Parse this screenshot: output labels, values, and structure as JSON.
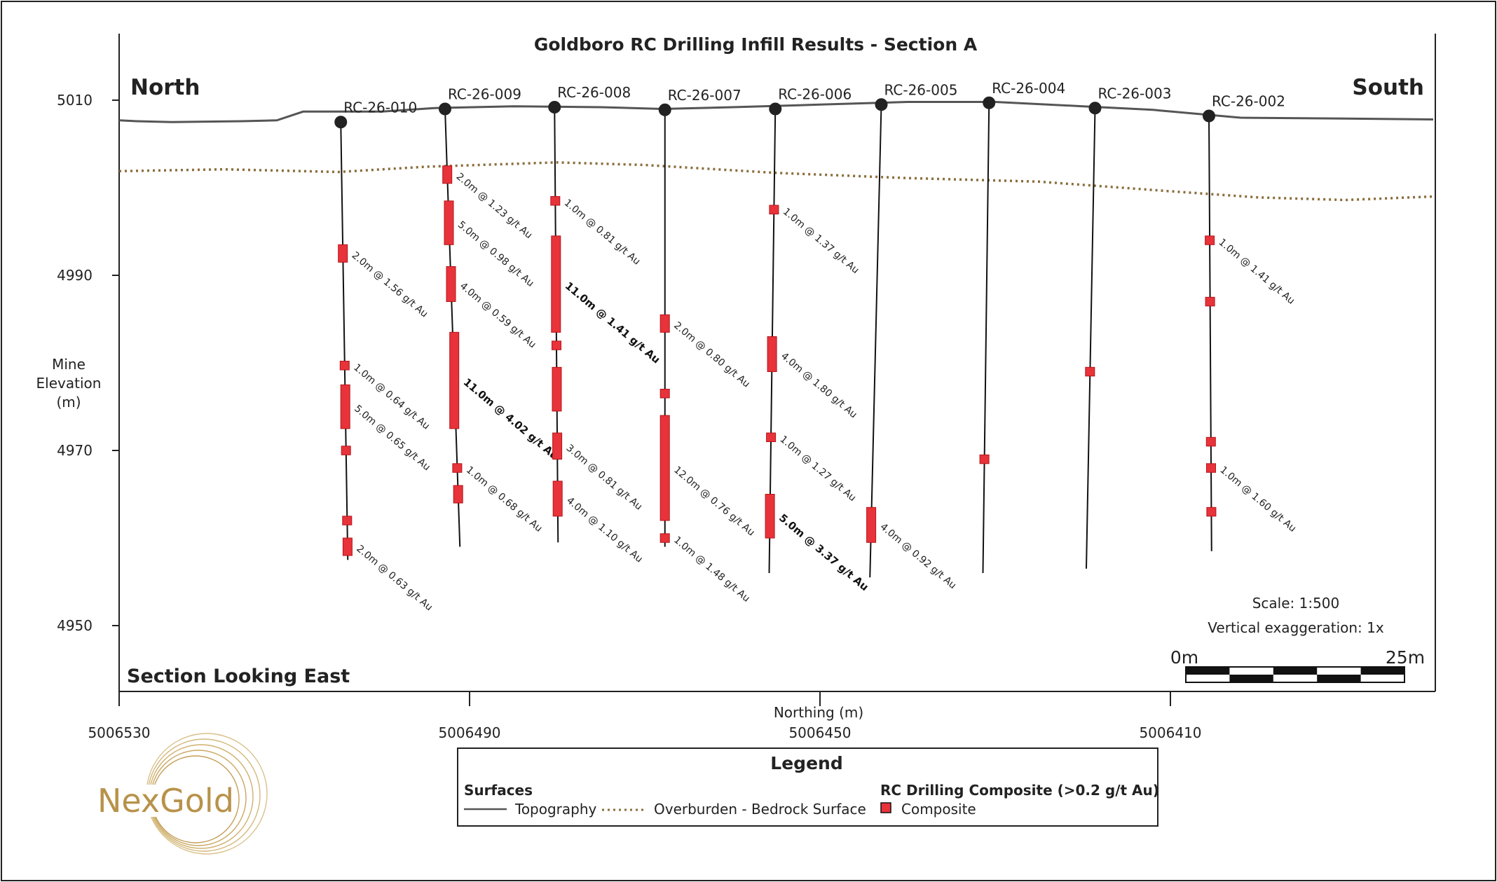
{
  "title": "Goldboro RC Drilling Infill Results - Section A",
  "north_label": "North",
  "south_label": "South",
  "section_label": "Section Looking East",
  "y_axis": {
    "label_lines": [
      "Mine",
      "Elevation",
      "(m)"
    ],
    "ticks": [
      "5010",
      "4990",
      "4970",
      "4950"
    ]
  },
  "x_axis": {
    "label": "Northing (m)",
    "ticks": [
      "5006530",
      "5006490",
      "5006450",
      "5006410"
    ]
  },
  "scale": {
    "text": "Scale: 1:500",
    "exaggeration": "Vertical exaggeration: 1x",
    "start": "0m",
    "end": "25m"
  },
  "legend": {
    "title": "Legend",
    "surfaces_title": "Surfaces",
    "topography": "Topography",
    "overburden": "Overburden - Bedrock Surface",
    "composite_title": "RC Drilling Composite (>0.2 g/t Au)",
    "composite": "Composite"
  },
  "logo": {
    "text": "NexGold"
  },
  "colors": {
    "composite": "#e8333a",
    "topography": "#555555",
    "overburden": "#8a6d3b",
    "collar": "#222222"
  },
  "holes": [
    {
      "name": "RC-26-010",
      "collar_northing": 5006504.7,
      "collar_elev": 5007.5,
      "toe_northing": 5006503.9,
      "toe_elev": 4957.5,
      "composites": [
        [
          4993.5,
          4991.5
        ],
        [
          4980.2,
          4979.2
        ],
        [
          4977.5,
          4972.5
        ],
        [
          4970.5,
          4969.5
        ],
        [
          4962.5,
          4961.5
        ],
        [
          4960.0,
          4958.0
        ]
      ],
      "labels": [
        {
          "text": "2.0m @ 1.56 g/t Au",
          "elev": 4992.5
        },
        {
          "text": "1.0m @ 0.64 g/t Au",
          "elev": 4979.7
        },
        {
          "text": "5.0m @ 0.65 g/t Au",
          "elev": 4975.0
        },
        {
          "text": "2.0m @ 0.63 g/t Au",
          "elev": 4959.0
        }
      ]
    },
    {
      "name": "RC-26-009",
      "collar_northing": 5006492.8,
      "collar_elev": 5009.0,
      "toe_northing": 5006491.1,
      "toe_elev": 4959.0,
      "composites": [
        [
          5002.5,
          5000.5
        ],
        [
          4998.5,
          4993.5
        ],
        [
          4991.0,
          4987.0
        ],
        [
          4983.5,
          4972.5
        ],
        [
          4968.5,
          4967.5
        ],
        [
          4966.0,
          4964.0
        ]
      ],
      "labels": [
        {
          "text": "2.0m @ 1.23 g/t Au",
          "elev": 5001.5
        },
        {
          "text": "5.0m @ 0.98 g/t Au",
          "elev": 4996.0
        },
        {
          "text": "4.0m @ 0.59 g/t Au",
          "elev": 4989.0
        },
        {
          "text": "11.0m @ 4.02 g/t Au",
          "elev": 4978.0,
          "bold": true
        },
        {
          "text": "1.0m @ 0.68 g/t Au",
          "elev": 4968.0
        }
      ]
    },
    {
      "name": "RC-26-008",
      "collar_northing": 5006480.3,
      "collar_elev": 5009.2,
      "toe_northing": 5006479.9,
      "toe_elev": 4959.5,
      "composites": [
        [
          4999.0,
          4998.0
        ],
        [
          4994.5,
          4983.5
        ],
        [
          4982.5,
          4981.5
        ],
        [
          4979.5,
          4974.5
        ],
        [
          4972.0,
          4969.0
        ],
        [
          4966.5,
          4962.5
        ]
      ],
      "labels": [
        {
          "text": "1.0m @ 0.81 g/t Au",
          "elev": 4998.5
        },
        {
          "text": "11.0m @ 1.41 g/t Au",
          "elev": 4989.0,
          "bold": true
        },
        {
          "text": "3.0m @ 0.81 g/t Au",
          "elev": 4970.5
        },
        {
          "text": "4.0m @ 1.10 g/t Au",
          "elev": 4964.5
        }
      ]
    },
    {
      "name": "RC-26-007",
      "collar_northing": 5006467.7,
      "collar_elev": 5008.9,
      "toe_northing": 5006467.7,
      "toe_elev": 4959.0,
      "composites": [
        [
          4985.5,
          4983.5
        ],
        [
          4977.0,
          4976.0
        ],
        [
          4974.0,
          4962.0
        ],
        [
          4960.5,
          4959.5
        ]
      ],
      "labels": [
        {
          "text": "2.0m @ 0.80 g/t Au",
          "elev": 4984.5
        },
        {
          "text": "12.0m @ 0.76 g/t Au",
          "elev": 4968.0
        },
        {
          "text": "1.0m @ 1.48 g/t Au",
          "elev": 4960.0
        }
      ]
    },
    {
      "name": "RC-26-006",
      "collar_northing": 5006455.1,
      "collar_elev": 5009.0,
      "toe_northing": 5006455.8,
      "toe_elev": 4956.0,
      "composites": [
        [
          4998.0,
          4997.0
        ],
        [
          4983.0,
          4979.0
        ],
        [
          4972.0,
          4971.0
        ],
        [
          4965.0,
          4960.0
        ]
      ],
      "labels": [
        {
          "text": "1.0m @ 1.37 g/t Au",
          "elev": 4997.5
        },
        {
          "text": "4.0m @ 1.80 g/t Au",
          "elev": 4981.0
        },
        {
          "text": "1.0m @ 1.27 g/t Au",
          "elev": 4971.5
        },
        {
          "text": "5.0m @ 3.37 g/t Au",
          "elev": 4962.5,
          "bold": true
        }
      ]
    },
    {
      "name": "RC-26-005",
      "collar_northing": 5006443.0,
      "collar_elev": 5009.5,
      "toe_northing": 5006444.3,
      "toe_elev": 4955.5,
      "composites": [
        [
          4963.5,
          4959.5
        ]
      ],
      "labels": [
        {
          "text": "4.0m @ 0.92 g/t Au",
          "elev": 4961.5
        }
      ]
    },
    {
      "name": "RC-26-004",
      "collar_northing": 5006430.7,
      "collar_elev": 5009.7,
      "toe_northing": 5006431.4,
      "toe_elev": 4956.0,
      "composites": [
        [
          4969.5,
          4968.5
        ]
      ],
      "labels": []
    },
    {
      "name": "RC-26-003",
      "collar_northing": 5006418.6,
      "collar_elev": 5009.1,
      "toe_northing": 5006419.6,
      "toe_elev": 4956.5,
      "composites": [
        [
          4979.5,
          4978.5
        ]
      ],
      "labels": []
    },
    {
      "name": "RC-26-002",
      "collar_northing": 5006405.6,
      "collar_elev": 5008.2,
      "toe_northing": 5006405.3,
      "toe_elev": 4958.5,
      "composites": [
        [
          4994.5,
          4993.5
        ],
        [
          4987.5,
          4986.5
        ],
        [
          4971.5,
          4970.5
        ],
        [
          4968.5,
          4967.5
        ],
        [
          4963.5,
          4962.5
        ]
      ],
      "labels": [
        {
          "text": "1.0m @ 1.41 g/t Au",
          "elev": 4994.0
        },
        {
          "text": "1.0m @ 1.60 g/t Au",
          "elev": 4968.0
        }
      ]
    }
  ],
  "topography": [
    [
      5006530,
      5007.7
    ],
    [
      5006528,
      5007.6
    ],
    [
      5006524,
      5007.5
    ],
    [
      5006516,
      5007.6
    ],
    [
      5006512,
      5007.7
    ],
    [
      5006509,
      5008.7
    ],
    [
      5006500,
      5008.7
    ],
    [
      5006494,
      5009.1
    ],
    [
      5006485,
      5009.3
    ],
    [
      5006475,
      5009.2
    ],
    [
      5006468,
      5009.0
    ],
    [
      5006460,
      5009.2
    ],
    [
      5006450,
      5009.5
    ],
    [
      5006440,
      5009.8
    ],
    [
      5006430,
      5009.8
    ],
    [
      5006420,
      5009.3
    ],
    [
      5006412,
      5008.9
    ],
    [
      5006402,
      5008.0
    ],
    [
      5006390,
      5007.9
    ],
    [
      5006380,
      5007.8
    ]
  ],
  "overburden": [
    [
      5006530,
      5001.9
    ],
    [
      5006518,
      5002.1
    ],
    [
      5006505,
      5001.8
    ],
    [
      5006495,
      5002.4
    ],
    [
      5006480,
      5002.9
    ],
    [
      5006470,
      5002.6
    ],
    [
      5006455,
      5001.7
    ],
    [
      5006440,
      5001.1
    ],
    [
      5006425,
      5000.7
    ],
    [
      5006410,
      4999.6
    ],
    [
      5006400,
      4998.9
    ],
    [
      5006390,
      4998.6
    ],
    [
      5006380,
      4999.0
    ]
  ]
}
